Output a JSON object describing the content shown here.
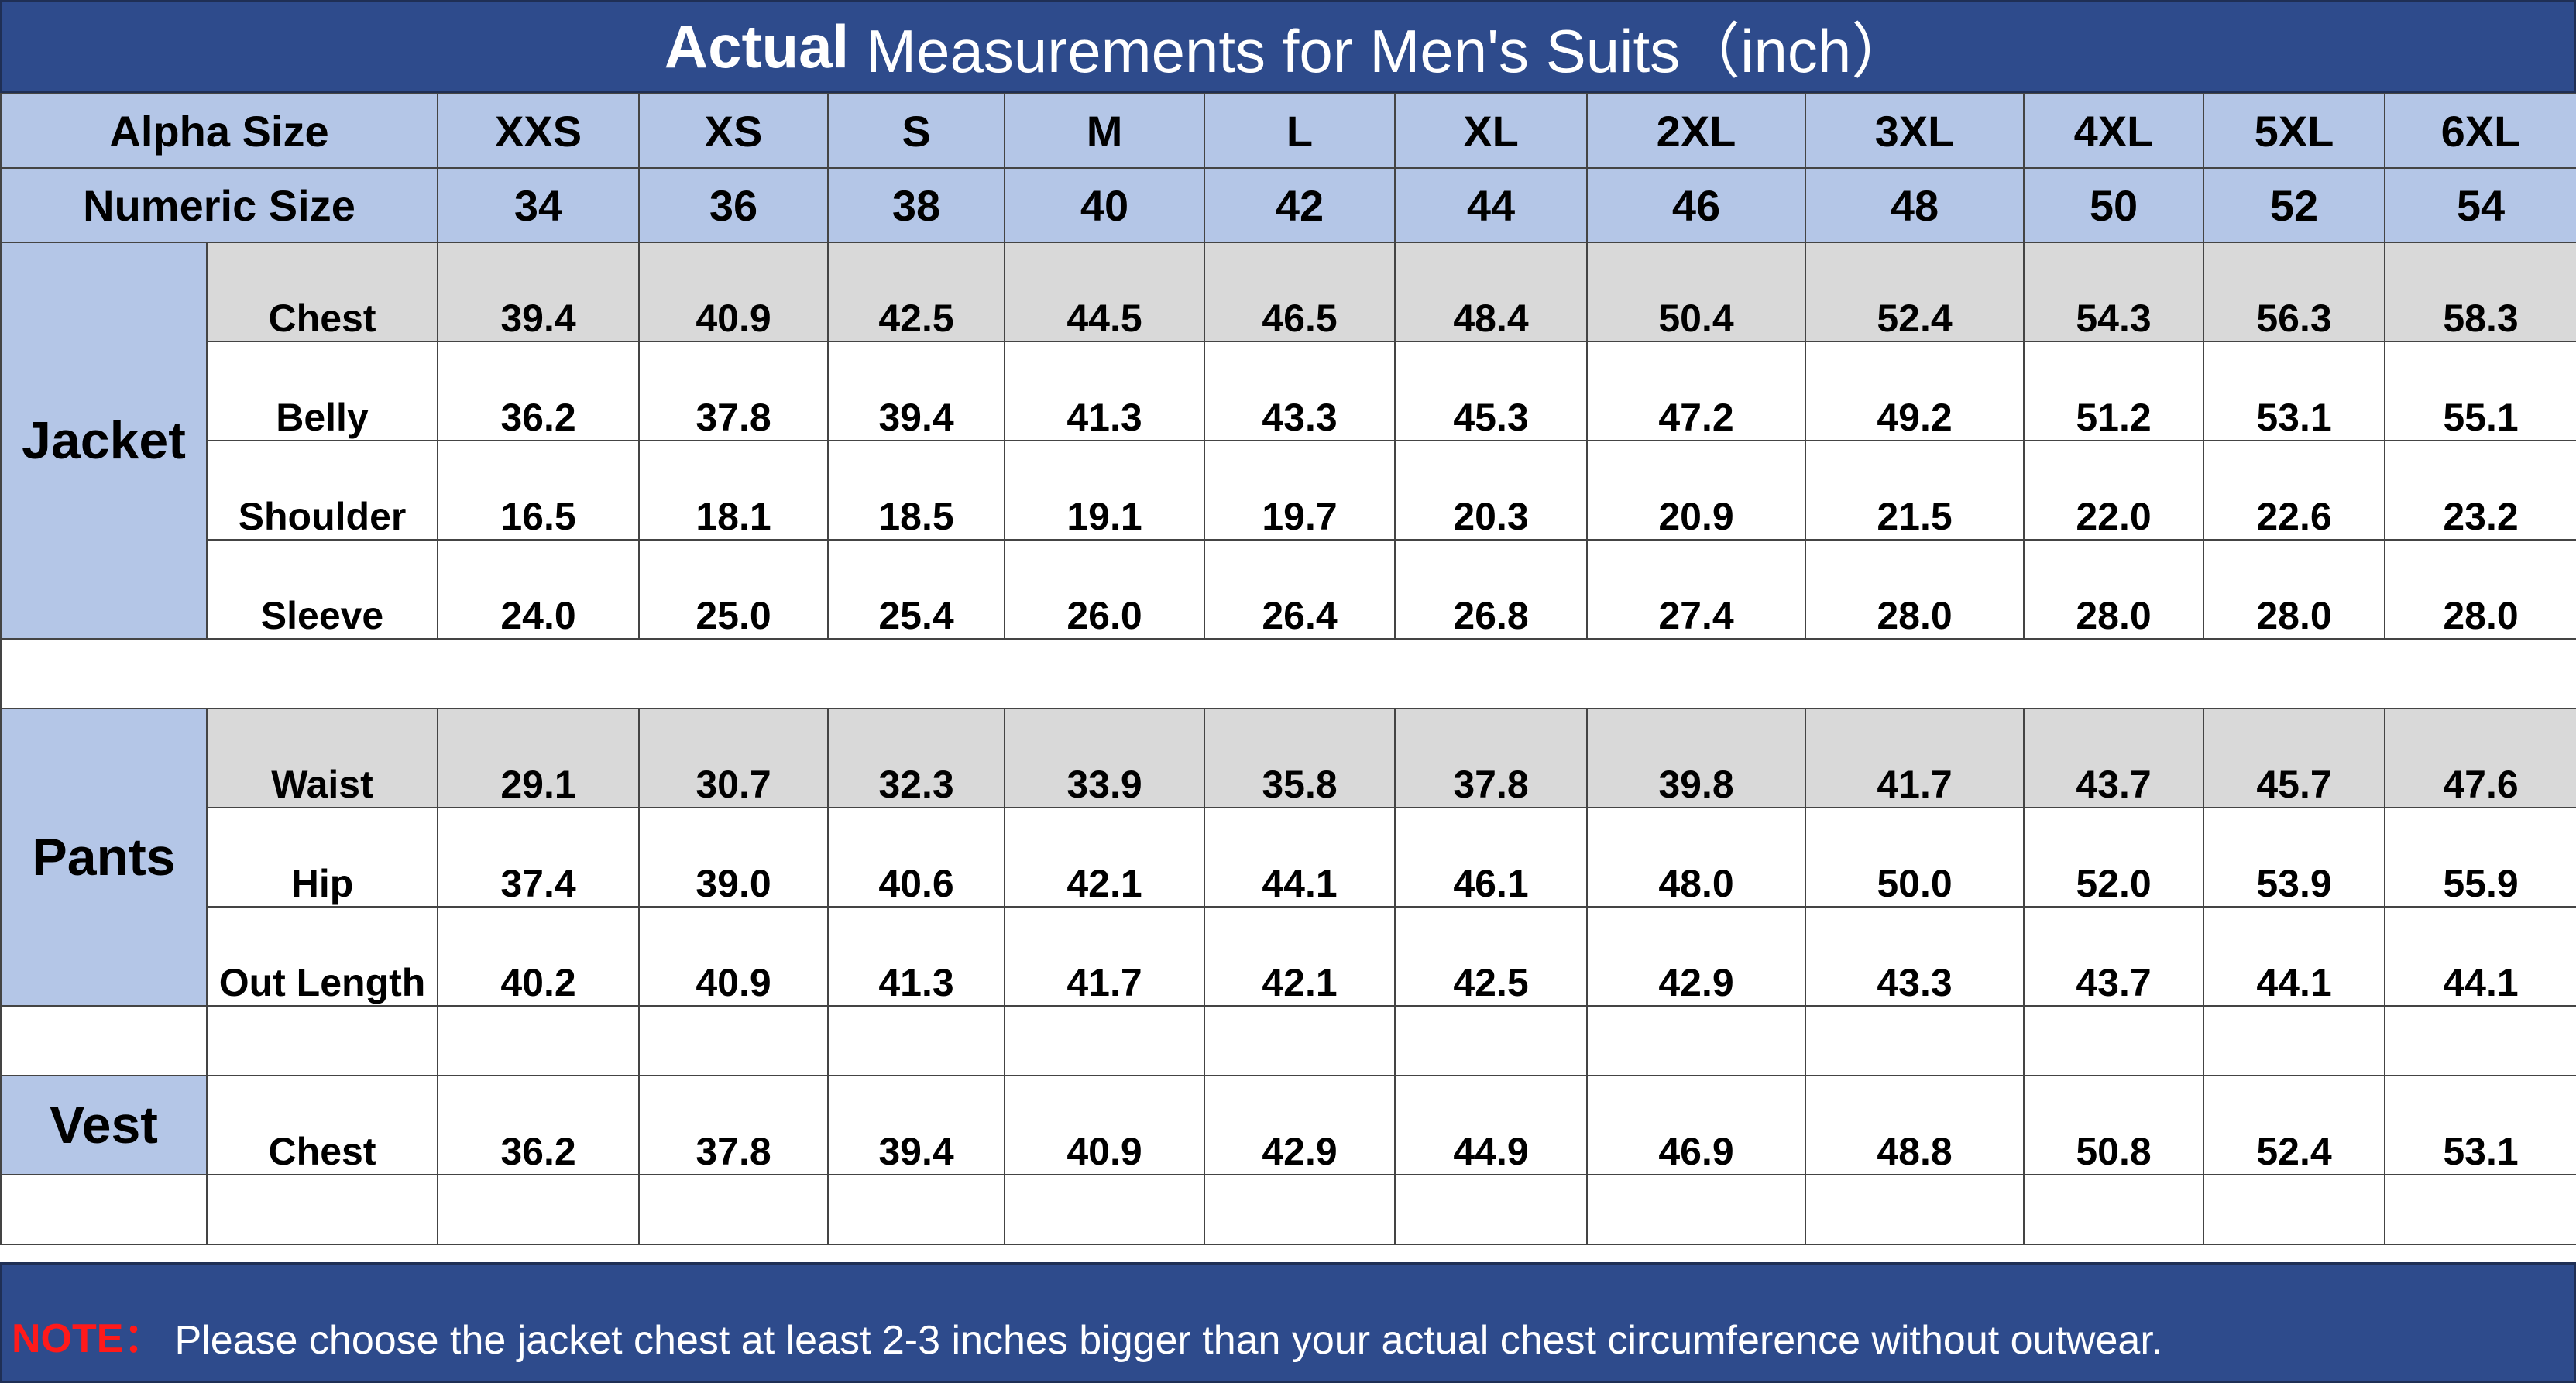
{
  "title": {
    "bold": "Actual",
    "rest": "Measurements for Men's Suits（inch）"
  },
  "header": {
    "alpha_label": "Alpha Size",
    "numeric_label": "Numeric Size",
    "alpha": [
      "XXS",
      "XS",
      "S",
      "M",
      "L",
      "XL",
      "2XL",
      "3XL",
      "4XL",
      "5XL",
      "6XL"
    ],
    "numeric": [
      "34",
      "36",
      "38",
      "40",
      "42",
      "44",
      "46",
      "48",
      "50",
      "52",
      "54"
    ]
  },
  "groups": {
    "jacket": {
      "label": "Jacket",
      "rows": [
        {
          "label": "Chest",
          "values": [
            "39.4",
            "40.9",
            "42.5",
            "44.5",
            "46.5",
            "48.4",
            "50.4",
            "52.4",
            "54.3",
            "56.3",
            "58.3"
          ]
        },
        {
          "label": "Belly",
          "values": [
            "36.2",
            "37.8",
            "39.4",
            "41.3",
            "43.3",
            "45.3",
            "47.2",
            "49.2",
            "51.2",
            "53.1",
            "55.1"
          ]
        },
        {
          "label": "Shoulder",
          "values": [
            "16.5",
            "18.1",
            "18.5",
            "19.1",
            "19.7",
            "20.3",
            "20.9",
            "21.5",
            "22.0",
            "22.6",
            "23.2"
          ]
        },
        {
          "label": "Sleeve",
          "values": [
            "24.0",
            "25.0",
            "25.4",
            "26.0",
            "26.4",
            "26.8",
            "27.4",
            "28.0",
            "28.0",
            "28.0",
            "28.0"
          ]
        }
      ]
    },
    "pants": {
      "label": "Pants",
      "rows": [
        {
          "label": "Waist",
          "values": [
            "29.1",
            "30.7",
            "32.3",
            "33.9",
            "35.8",
            "37.8",
            "39.8",
            "41.7",
            "43.7",
            "45.7",
            "47.6"
          ]
        },
        {
          "label": "Hip",
          "values": [
            "37.4",
            "39.0",
            "40.6",
            "42.1",
            "44.1",
            "46.1",
            "48.0",
            "50.0",
            "52.0",
            "53.9",
            "55.9"
          ]
        },
        {
          "label": "Out Length",
          "values": [
            "40.2",
            "40.9",
            "41.3",
            "41.7",
            "42.1",
            "42.5",
            "42.9",
            "43.3",
            "43.7",
            "44.1",
            "44.1"
          ]
        }
      ]
    },
    "vest": {
      "label": "Vest",
      "rows": [
        {
          "label": "Chest",
          "values": [
            "36.2",
            "37.8",
            "39.4",
            "40.9",
            "42.9",
            "44.9",
            "46.9",
            "48.8",
            "50.8",
            "52.4",
            "53.1"
          ]
        }
      ]
    }
  },
  "note": {
    "label": "NOTE：",
    "text": "Please choose the jacket chest at least 2-3 inches bigger than your actual chest circumference without outwear."
  },
  "colors": {
    "title_bg": "#2e4b8c",
    "header_bg": "#b4c6e7",
    "shaded_row": "#d9d9d9",
    "note_label": "#ff1a1a"
  }
}
